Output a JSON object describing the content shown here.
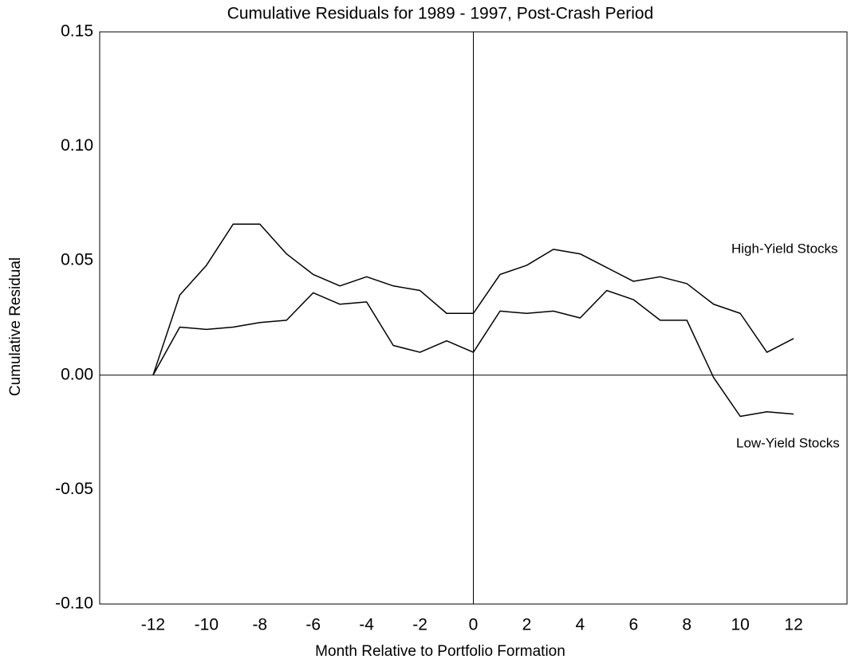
{
  "chart_data": {
    "type": "line",
    "title": "Cumulative Residuals for 1989 - 1997, Post-Crash Period",
    "x_label": "Month Relative to Portfolio Formation",
    "y_label": "Cumulative Residual",
    "x": [
      -12,
      -11,
      -10,
      -9,
      -8,
      -7,
      -6,
      -5,
      -4,
      -3,
      -2,
      -1,
      0,
      1,
      2,
      3,
      4,
      5,
      6,
      7,
      8,
      9,
      10,
      11,
      12
    ],
    "series": [
      {
        "name": "High-Yield Stocks",
        "color": "#000000",
        "values": [
          0,
          0.035,
          0.048,
          0.066,
          0.066,
          0.053,
          0.044,
          0.039,
          0.043,
          0.039,
          0.037,
          0.027,
          0.027,
          0.044,
          0.048,
          0.055,
          0.053,
          0.047,
          0.041,
          0.043,
          0.04,
          0.031,
          0.027,
          0.01,
          0.016
        ]
      },
      {
        "name": "Low-Yield Stocks",
        "color": "#000000",
        "values": [
          0,
          0.021,
          0.02,
          0.021,
          0.023,
          0.024,
          0.036,
          0.031,
          0.032,
          0.013,
          0.01,
          0.015,
          0.01,
          0.028,
          0.027,
          0.028,
          0.025,
          0.037,
          0.033,
          0.024,
          0.024,
          -0.001,
          -0.018,
          -0.016,
          -0.017
        ]
      }
    ],
    "xlim": [
      -14,
      14
    ],
    "ylim": [
      -0.1,
      0.15
    ],
    "xticks": [
      -12,
      -10,
      -8,
      -6,
      -4,
      -2,
      0,
      2,
      4,
      6,
      8,
      10,
      12
    ],
    "yticks": [
      {
        "value": -0.1,
        "label": "-0.10"
      },
      {
        "value": -0.05,
        "label": "-0.05"
      },
      {
        "value": 0,
        "label": "0.00"
      },
      {
        "value": 0.05,
        "label": "0.05"
      },
      {
        "value": 0.1,
        "label": "0.10"
      },
      {
        "value": 0.15,
        "label": "0.15"
      }
    ],
    "grid": false
  }
}
